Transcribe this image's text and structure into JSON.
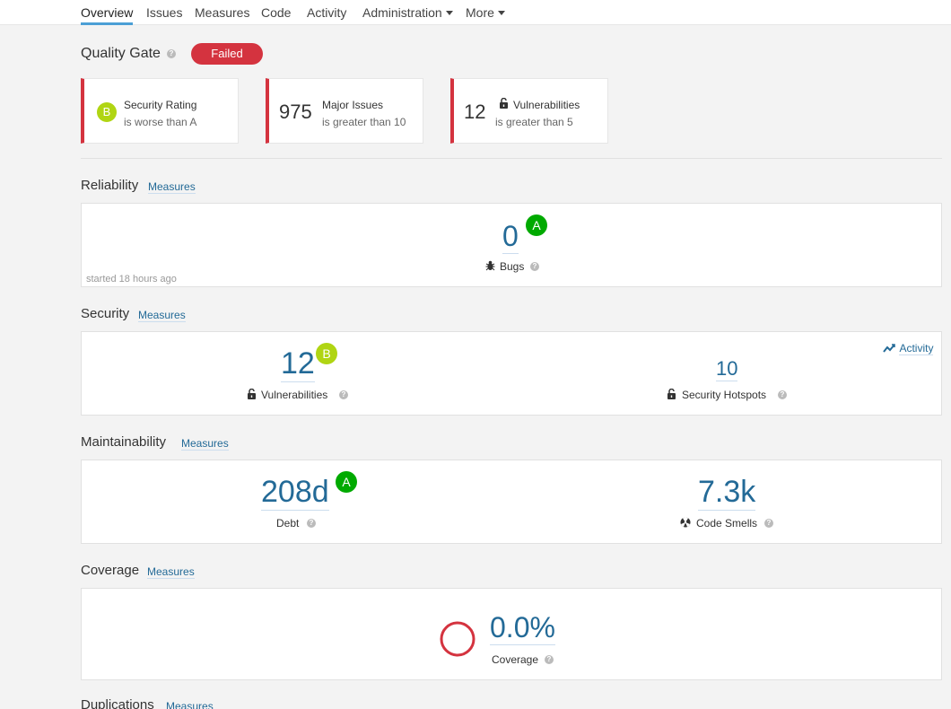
{
  "nav": {
    "tabs": [
      {
        "label": "Overview",
        "active": true
      },
      {
        "label": "Issues"
      },
      {
        "label": "Measures"
      },
      {
        "label": "Code"
      },
      {
        "label": "Activity"
      },
      {
        "label": "Administration"
      },
      {
        "label": "More"
      }
    ]
  },
  "quality_gate": {
    "title": "Quality Gate",
    "status": "Failed",
    "status_color": "#d4333f",
    "conditions": [
      {
        "value": "B",
        "metric": "Security Rating",
        "detail": "is worse than A"
      },
      {
        "value": "975",
        "metric": "Major Issues",
        "detail": "is greater than 10"
      },
      {
        "value": "12",
        "metric": "Vulnerabilities",
        "detail": "is greater than 5"
      }
    ]
  },
  "reliability": {
    "title": "Reliability",
    "link": "Measures",
    "started": "started 18 hours ago",
    "bugs": {
      "value": "0",
      "rating": "A",
      "label": "Bugs"
    }
  },
  "security": {
    "title": "Security",
    "link": "Measures",
    "activity": "Activity",
    "vulnerabilities": {
      "value": "12",
      "rating": "B",
      "label": "Vulnerabilities"
    },
    "hotspots": {
      "value": "10",
      "label": "Security Hotspots"
    }
  },
  "maintainability": {
    "title": "Maintainability",
    "link": "Measures",
    "debt": {
      "value": "208d",
      "rating": "A",
      "label": "Debt"
    },
    "smells": {
      "value": "7.3k",
      "label": "Code Smells"
    }
  },
  "coverage": {
    "title": "Coverage",
    "link": "Measures",
    "value": "0.0%",
    "label": "Coverage"
  },
  "duplications": {
    "title": "Duplications",
    "link": "Measures"
  },
  "colors": {
    "rating_a": "#00aa00",
    "rating_b": "#b0d513",
    "link": "#236a97",
    "error": "#d4333f"
  }
}
